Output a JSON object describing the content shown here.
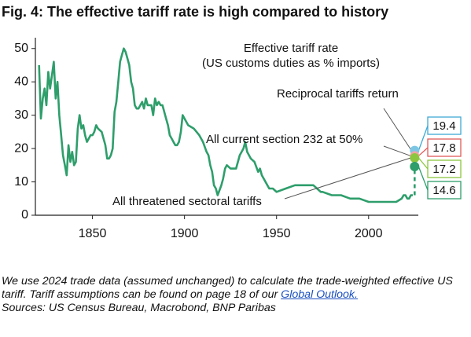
{
  "chart_data": {
    "type": "line",
    "title": "Fig. 4: The effective tariff rate is high compared to history",
    "chart_text": [
      "Effective tariff rate",
      "(US customs duties as % imports)"
    ],
    "x": [
      1821,
      1822,
      1823,
      1824,
      1825,
      1826,
      1827,
      1828,
      1829,
      1830,
      1831,
      1832,
      1833,
      1834,
      1835,
      1836,
      1837,
      1838,
      1839,
      1840,
      1841,
      1842,
      1843,
      1844,
      1845,
      1846,
      1847,
      1848,
      1849,
      1850,
      1851,
      1852,
      1853,
      1855,
      1857,
      1858,
      1859,
      1860,
      1861,
      1862,
      1863,
      1864,
      1865,
      1866,
      1867,
      1868,
      1869,
      1870,
      1871,
      1872,
      1873,
      1874,
      1875,
      1876,
      1877,
      1878,
      1879,
      1880,
      1881,
      1882,
      1883,
      1884,
      1885,
      1886,
      1887,
      1888,
      1890,
      1891,
      1892,
      1893,
      1894,
      1895,
      1896,
      1897,
      1898,
      1899,
      1900,
      1902,
      1905,
      1908,
      1910,
      1912,
      1913,
      1914,
      1915,
      1916,
      1917,
      1918,
      1920,
      1921,
      1922,
      1923,
      1925,
      1928,
      1930,
      1932,
      1933,
      1934,
      1936,
      1938,
      1940,
      1941,
      1942,
      1943,
      1945,
      1946,
      1948,
      1950,
      1955,
      1960,
      1965,
      1970,
      1972,
      1974,
      1975,
      1980,
      1985,
      1990,
      1995,
      2000,
      2005,
      2010,
      2015,
      2018,
      2019,
      2020,
      2021,
      2022,
      2023,
      2024
    ],
    "values": [
      45,
      29,
      35,
      38,
      33,
      43,
      38,
      42,
      46,
      35,
      40,
      30,
      24,
      18,
      15,
      12,
      21,
      16,
      19,
      15,
      16,
      26,
      30,
      26,
      27,
      24,
      22,
      23,
      24,
      24,
      25,
      27,
      26,
      25,
      21,
      17,
      17,
      18,
      20,
      31,
      34,
      40,
      46,
      48,
      50,
      49,
      47,
      45,
      40,
      38,
      33,
      32,
      32,
      33,
      34,
      32,
      35,
      33,
      33,
      33,
      30,
      35,
      33,
      34,
      33,
      33,
      29,
      27,
      24,
      23,
      22,
      21,
      21,
      22,
      25,
      30,
      29,
      27,
      26,
      24,
      22,
      19,
      18,
      15,
      13,
      9,
      8,
      6,
      9,
      11,
      14,
      15,
      14,
      14,
      18,
      20,
      22,
      19,
      17,
      16,
      13,
      14,
      12,
      11,
      9,
      8,
      8,
      7,
      8,
      9,
      9,
      9,
      8,
      7,
      7,
      6,
      6,
      5,
      5,
      4,
      4,
      4,
      4,
      5,
      6,
      6,
      5,
      5,
      6,
      6
    ],
    "color": "#2e9e6b",
    "scenario_x": 2025,
    "scenarios": [
      {
        "value": 19.4,
        "color": "#7cc6e4",
        "border": "#3fa9d6"
      },
      {
        "value": 17.8,
        "color": "#f3a3a3",
        "border": "#e05a5a"
      },
      {
        "value": 17.2,
        "color": "#8cc63f",
        "border": "#8cc63f"
      },
      {
        "value": 14.6,
        "color": "#2e9e6b",
        "border": "#2e9e6b"
      }
    ],
    "annotations": [
      "Reciprocal tariffs return",
      "All current section 232 at 50%",
      "All threatened sectoral tariffs"
    ],
    "xlim": [
      1819,
      2027
    ],
    "ylim": [
      0,
      53
    ],
    "xticks": [
      1850,
      1900,
      1950,
      2000
    ],
    "yticks": [
      0,
      10,
      20,
      30,
      40,
      50
    ],
    "note": [
      "We use 2024 trade data (assumed unchanged) to calculate the trade-weighted effective US tariff. Tariff assumptions can be found on page 18 of our ",
      "Global Outlook."
    ],
    "sources": "Sources: US Census Bureau, Macrobond, BNP Paribas"
  }
}
